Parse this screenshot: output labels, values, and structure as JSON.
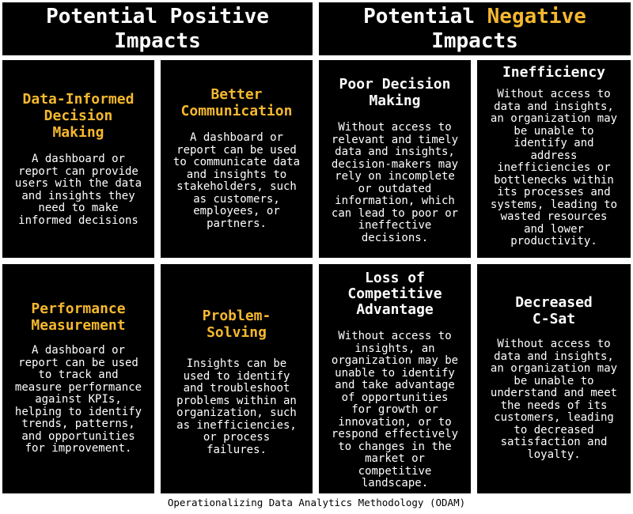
{
  "headers": {
    "positive": "Potential Positive\nImpacts",
    "negative_prefix": "Potential ",
    "negative_accent": "Negative",
    "negative_suffix": "Impacts"
  },
  "colors": {
    "accent": "#f5b82e",
    "panel": "#000000",
    "text": "#ffffff"
  },
  "positive": [
    {
      "title": "Data-Informed\nDecision\nMaking",
      "body": "A dashboard or\nreport can provide\nusers with the data\nand insights they\nneed to make\ninformed decisions"
    },
    {
      "title": "Better\nCommunication",
      "body": "A dashboard or\nreport can be used\nto communicate data\nand insights to\nstakeholders, such\nas customers,\nemployees, or\npartners."
    },
    {
      "title": "Performance\nMeasurement",
      "body": "A dashboard or\nreport can be used\nto track and\nmeasure performance\nagainst  KPIs,\nhelping to identify\ntrends, patterns,\nand opportunities\nfor improvement."
    },
    {
      "title": "Problem-\nSolving",
      "body": "Insights can be\nused to identify\nand troubleshoot\nproblems within an\norganization, such\nas  inefficiencies,\nor process\nfailures."
    }
  ],
  "negative": [
    {
      "title": "Poor Decision\nMaking",
      "body": "Without access to\nrelevant and timely\ndata and insights,\ndecision-makers may\nrely on incomplete\nor outdated\ninformation, which\ncan lead to poor or\nineffective\ndecisions."
    },
    {
      "title": "Inefficiency",
      "body": "Without access to\ndata and insights,\nan organization may\nbe unable to\nidentify and\naddress\ninefficiencies or\nbottlenecks within\nits processes and\nsystems, leading to\nwasted resources\nand lower\nproductivity."
    },
    {
      "title": "Loss of\nCompetitive\nAdvantage",
      "body": "Without access to\ninsights, an\norganization may be\nunable to identify\nand take advantage\nof opportunities\nfor growth or\ninnovation, or to\nrespond effectively\nto changes in the\nmarket or\ncompetitive\nlandscape."
    },
    {
      "title": "Decreased\nC-Sat",
      "body": "Without access to\ndata and insights,\nan organization may\nbe unable to\nunderstand and meet\nthe needs of its\ncustomers, leading\nto decreased\nsatisfaction and\nloyalty."
    }
  ],
  "footer": "Operationalizing Data Analytics Methodology (ODAM)"
}
